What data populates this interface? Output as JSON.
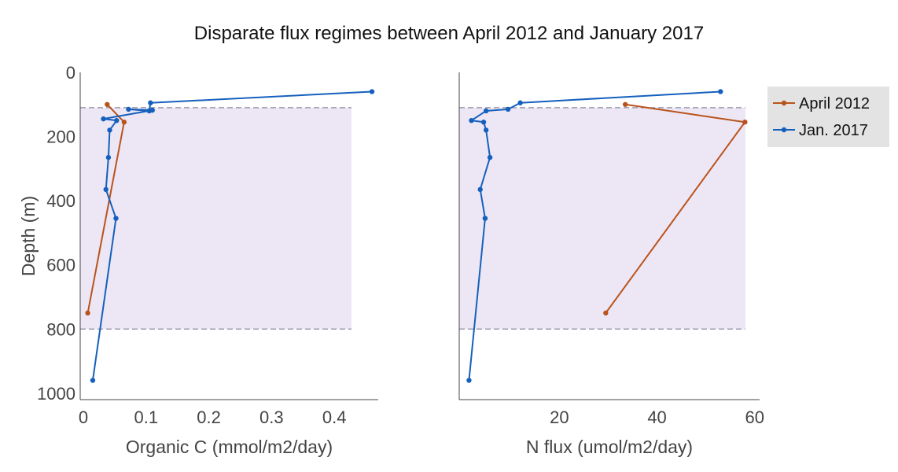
{
  "chart_data": {
    "type": "line",
    "title": "Disparate flux regimes between April 2012 and January 2017",
    "legend": {
      "placement": "top-right",
      "items": [
        {
          "name": "April 2012",
          "color": "#b9531c"
        },
        {
          "name": "Jan. 2017",
          "color": "#1560bd"
        }
      ]
    },
    "band": {
      "depth_range": [
        110,
        800
      ],
      "color": "#ede7f5",
      "line_color": "#8a8aa0"
    },
    "yaxis": {
      "label": "Depth (m)",
      "range": [
        0,
        1020
      ],
      "reversed": true,
      "ticks": [
        0,
        200,
        400,
        600,
        800,
        1000
      ]
    },
    "panels": [
      {
        "xlabel": "Organic C (mmol/m2/day)",
        "xlim": [
          -0.005,
          0.47
        ],
        "xticks": [
          {
            "value": 0,
            "label": "0"
          },
          {
            "value": 0.1,
            "label": "0.1"
          },
          {
            "value": 0.2,
            "label": "0.2"
          },
          {
            "value": 0.3,
            "label": "0.3"
          },
          {
            "value": 0.4,
            "label": "0.4"
          }
        ],
        "series": [
          {
            "name": "April 2012",
            "color": "#b9531c",
            "points": [
              [
                0.038,
                100
              ],
              [
                0.065,
                155
              ],
              [
                0.007,
                750
              ]
            ]
          },
          {
            "name": "Jan. 2017",
            "color": "#1560bd",
            "points": [
              [
                0.46,
                60
              ],
              [
                0.107,
                95
              ],
              [
                0.105,
                120
              ],
              [
                0.072,
                115
              ],
              [
                0.11,
                118
              ],
              [
                0.032,
                145
              ],
              [
                0.053,
                150
              ],
              [
                0.042,
                180
              ],
              [
                0.04,
                265
              ],
              [
                0.036,
                365
              ],
              [
                0.052,
                455
              ],
              [
                0.015,
                960
              ]
            ]
          }
        ]
      },
      {
        "xlabel": "N flux (umol/m2/day)",
        "xlim": [
          -0.5,
          61
        ],
        "xticks": [
          {
            "value": 20,
            "label": "20"
          },
          {
            "value": 40,
            "label": "40"
          },
          {
            "value": 60,
            "label": "60"
          }
        ],
        "series": [
          {
            "name": "April 2012",
            "color": "#b9531c",
            "points": [
              [
                33.5,
                100
              ],
              [
                58,
                155
              ],
              [
                29.5,
                750
              ]
            ]
          },
          {
            "name": "Jan. 2017",
            "color": "#1560bd",
            "points": [
              [
                53,
                60
              ],
              [
                12,
                95
              ],
              [
                9.5,
                115
              ],
              [
                5,
                120
              ],
              [
                2,
                150
              ],
              [
                4.5,
                155
              ],
              [
                5,
                180
              ],
              [
                5.8,
                265
              ],
              [
                3.8,
                365
              ],
              [
                4.8,
                455
              ],
              [
                1.5,
                960
              ]
            ]
          }
        ]
      }
    ]
  }
}
